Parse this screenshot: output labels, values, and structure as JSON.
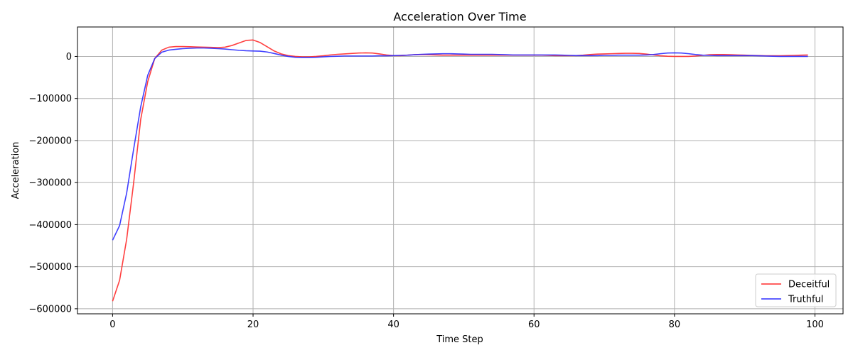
{
  "chart_data": {
    "type": "line",
    "title": "Acceleration Over Time",
    "xlabel": "Time Step",
    "ylabel": "Acceleration",
    "xlim": [
      -5,
      104
    ],
    "ylim": [
      -612000,
      70000
    ],
    "x_ticks": [
      0,
      20,
      40,
      60,
      80,
      100
    ],
    "x_tick_labels": [
      "0",
      "20",
      "40",
      "60",
      "80",
      "100"
    ],
    "y_ticks": [
      0,
      -100000,
      -200000,
      -300000,
      -400000,
      -500000,
      -600000
    ],
    "y_tick_labels": [
      "0",
      "−100000",
      "−200000",
      "−300000",
      "−400000",
      "−500000",
      "−600000"
    ],
    "grid": true,
    "legend_position": "lower-right",
    "x": [
      0,
      1,
      2,
      3,
      4,
      5,
      6,
      7,
      8,
      9,
      10,
      11,
      12,
      13,
      14,
      15,
      16,
      17,
      18,
      19,
      20,
      21,
      22,
      23,
      24,
      25,
      26,
      27,
      28,
      29,
      30,
      31,
      32,
      33,
      34,
      35,
      36,
      37,
      38,
      39,
      40,
      41,
      42,
      43,
      44,
      45,
      46,
      47,
      48,
      49,
      50,
      51,
      52,
      53,
      54,
      55,
      56,
      57,
      58,
      59,
      60,
      61,
      62,
      63,
      64,
      65,
      66,
      67,
      68,
      69,
      70,
      71,
      72,
      73,
      74,
      75,
      76,
      77,
      78,
      79,
      80,
      81,
      82,
      83,
      84,
      85,
      86,
      87,
      88,
      89,
      90,
      91,
      92,
      93,
      94,
      95,
      96,
      97,
      98,
      99
    ],
    "series": [
      {
        "name": "Deceitful",
        "color": "#ff2b2b",
        "values": [
          -582000,
          -532000,
          -435000,
          -300000,
          -150000,
          -60000,
          -5000,
          15000,
          22000,
          23500,
          23500,
          23000,
          22500,
          22000,
          21500,
          21000,
          22000,
          26000,
          32000,
          38000,
          39000,
          33000,
          23000,
          13000,
          6000,
          2000,
          0,
          -1000,
          -1000,
          0,
          1500,
          3500,
          5000,
          6000,
          7000,
          8000,
          8500,
          8000,
          6000,
          3500,
          2000,
          2000,
          3000,
          4000,
          4500,
          4000,
          3500,
          3000,
          3000,
          3000,
          3000,
          3000,
          3000,
          3000,
          3000,
          3000,
          3000,
          3000,
          3000,
          3000,
          3000,
          3000,
          2500,
          2000,
          2000,
          2000,
          2000,
          3000,
          4500,
          5500,
          6000,
          6500,
          7000,
          7500,
          7500,
          7000,
          5500,
          3500,
          1500,
          500,
          0,
          0,
          0,
          1000,
          2500,
          4000,
          4500,
          4500,
          4000,
          3500,
          3000,
          2500,
          2000,
          1500,
          1500,
          1500,
          2000,
          2500,
          3000,
          3500
        ]
      },
      {
        "name": "Truthful",
        "color": "#2b2bff",
        "values": [
          -437000,
          -402000,
          -325000,
          -220000,
          -120000,
          -45000,
          -5000,
          10000,
          15000,
          17000,
          18500,
          19500,
          20000,
          20000,
          19500,
          18500,
          17500,
          16000,
          14500,
          13500,
          13000,
          12500,
          10500,
          7000,
          3000,
          0,
          -2000,
          -2500,
          -2500,
          -2000,
          -1000,
          0,
          500,
          1000,
          1000,
          1000,
          1000,
          1000,
          1500,
          1500,
          2000,
          2500,
          3000,
          4000,
          5000,
          5500,
          6000,
          6500,
          6500,
          6000,
          5500,
          5000,
          5000,
          5000,
          5000,
          4500,
          4000,
          3500,
          3500,
          3500,
          3500,
          3500,
          3500,
          3500,
          3000,
          2500,
          2000,
          2000,
          2000,
          2000,
          2500,
          2500,
          3000,
          3000,
          3000,
          3000,
          3500,
          4500,
          6500,
          8000,
          8500,
          8000,
          6500,
          4500,
          3000,
          2500,
          2000,
          2000,
          2000,
          2000,
          2000,
          2000,
          1500,
          1000,
          500,
          0,
          0,
          0,
          0,
          0
        ]
      }
    ]
  }
}
